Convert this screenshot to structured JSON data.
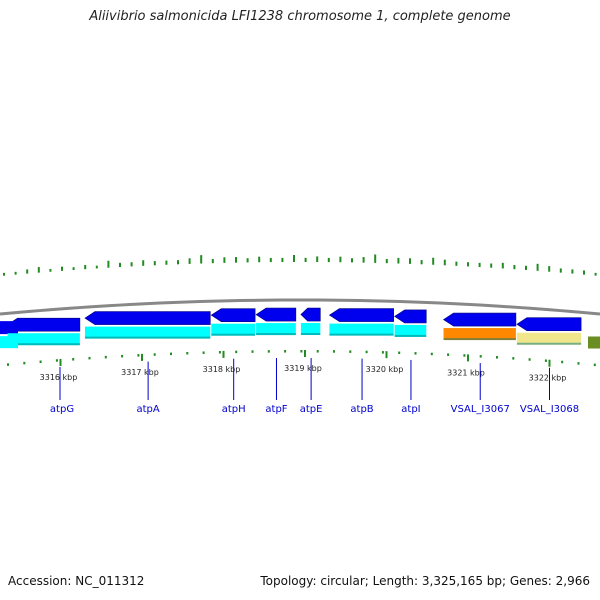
{
  "title": "Aliivibrio salmonicida LFI1238 chromosome 1, complete genome",
  "footer": {
    "accession": "Accession: NC_011312",
    "summary": "Topology: circular; Length: 3,325,165 bp; Genes: 2,966"
  },
  "colors": {
    "gene_forward": "#0000ee",
    "gene_reverse": "#0000ee",
    "cds": "#00ffff",
    "cds_orange": "#ff8800",
    "cds_light": "#f0e68c",
    "cds_green": "#6b8e23",
    "backbone": "#888888",
    "gc_tick": "#228b22",
    "label": "#0000cc"
  },
  "scale_ticks": [
    {
      "label": "3316 kbp",
      "pos_kbp": 3316
    },
    {
      "label": "3317 kbp",
      "pos_kbp": 3317
    },
    {
      "label": "3318 kbp",
      "pos_kbp": 3318
    },
    {
      "label": "3319 kbp",
      "pos_kbp": 3319
    },
    {
      "label": "3320 kbp",
      "pos_kbp": 3320
    },
    {
      "label": "3321 kbp",
      "pos_kbp": 3321
    },
    {
      "label": "3322 kbp",
      "pos_kbp": 3322
    }
  ],
  "genes": [
    {
      "name": "atpG",
      "start_kbp": 3315.35,
      "end_kbp": 3316.25,
      "strand": "-"
    },
    {
      "name": "atpA",
      "start_kbp": 3316.3,
      "end_kbp": 3317.85,
      "strand": "-"
    },
    {
      "name": "atpH",
      "start_kbp": 3317.85,
      "end_kbp": 3318.4,
      "strand": "-"
    },
    {
      "name": "atpF",
      "start_kbp": 3318.4,
      "end_kbp": 3318.9,
      "strand": "-"
    },
    {
      "name": "atpE",
      "start_kbp": 3318.95,
      "end_kbp": 3319.2,
      "strand": "-"
    },
    {
      "name": "atpB",
      "start_kbp": 3319.3,
      "end_kbp": 3320.1,
      "strand": "-"
    },
    {
      "name": "atpI",
      "start_kbp": 3320.1,
      "end_kbp": 3320.5,
      "strand": "-"
    },
    {
      "name": "VSAL_I3067",
      "start_kbp": 3320.7,
      "end_kbp": 3321.6,
      "strand": "-"
    },
    {
      "name": "VSAL_I3068",
      "start_kbp": 3321.6,
      "end_kbp": 3322.4,
      "strand": "-"
    }
  ],
  "gc_skew_values": [
    0.2,
    0.2,
    0.3,
    0.4,
    0.2,
    0.3,
    0.2,
    0.3,
    0.2,
    0.5,
    0.3,
    0.3,
    0.4,
    0.3,
    0.3,
    0.3,
    0.4,
    0.6,
    0.3,
    0.4,
    0.4,
    0.3,
    0.4,
    0.3,
    0.3,
    0.5,
    0.3,
    0.4,
    0.3,
    0.4,
    0.3,
    0.4,
    0.6,
    0.3,
    0.4,
    0.4,
    0.3,
    0.5,
    0.4,
    0.3,
    0.3,
    0.3,
    0.3,
    0.4,
    0.3,
    0.3,
    0.5,
    0.4,
    0.3,
    0.3,
    0.3,
    0.2
  ]
}
